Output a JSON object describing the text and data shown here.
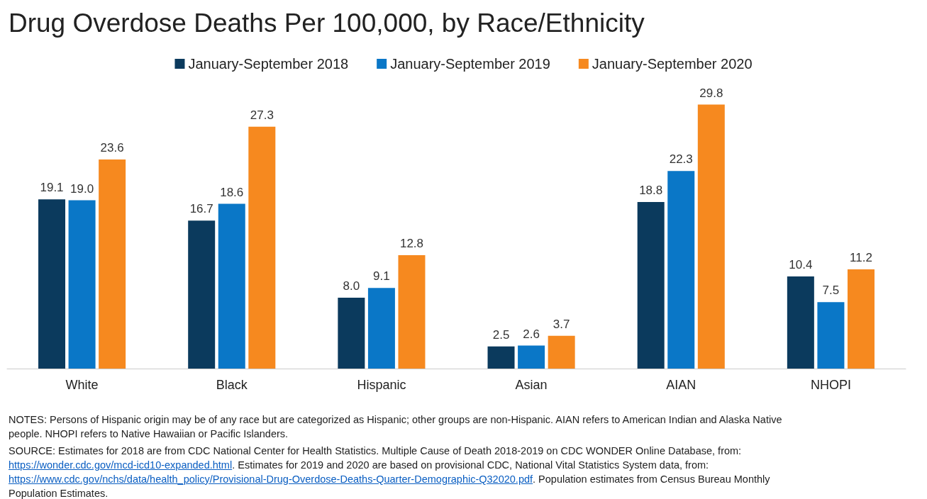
{
  "chart_data": {
    "type": "bar",
    "title": "Drug Overdose Deaths Per 100,000, by Race/Ethnicity",
    "categories": [
      "White",
      "Black",
      "Hispanic",
      "Asian",
      "AIAN",
      "NHOPI"
    ],
    "series": [
      {
        "name": "January-September 2018",
        "color": "#0b3a5d",
        "values": [
          19.1,
          16.7,
          8.0,
          2.5,
          18.8,
          10.4
        ],
        "value_labels": [
          "19.1",
          "16.7",
          "8.0",
          "2.5",
          "18.8",
          "10.4"
        ]
      },
      {
        "name": "January-September 2019",
        "color": "#0a77c7",
        "values": [
          19.0,
          18.6,
          9.1,
          2.6,
          22.3,
          7.5
        ],
        "value_labels": [
          "19.0",
          "18.6",
          "9.1",
          "2.6",
          "22.3",
          "7.5"
        ]
      },
      {
        "name": "January-September 2020",
        "color": "#f6891f",
        "values": [
          23.6,
          27.3,
          12.8,
          3.7,
          29.8,
          11.2
        ],
        "value_labels": [
          "23.6",
          "27.3",
          "12.8",
          "3.7",
          "29.8",
          "11.2"
        ]
      }
    ],
    "legend": "top",
    "annotations": [
      "NOTES: Persons of Hispanic origin may be of any race but are categorized as Hispanic; other groups are non-Hispanic. AIAN refers to American Indian and Alaska Native people. NHOPI refers to Native Hawaiian or Pacific Islanders.",
      "SOURCE: Estimates for 2018 are from CDC National Center for Health Statistics. Multiple Cause of Death 2018-2019 on CDC WONDER Online Database, from: https://wonder.cdc.gov/mcd-icd10-expanded.html. Estimates for 2019 and 2020 are based on provisional CDC, National Vital Statistics System data, from: https://www.cdc.gov/nchs/data/health_policy/Provisional-Drug-Overdose-Deaths-Quarter-Demographic-Q32020.pdf. Population estimates from Census Bureau Monthly Population Estimates."
    ]
  }
}
